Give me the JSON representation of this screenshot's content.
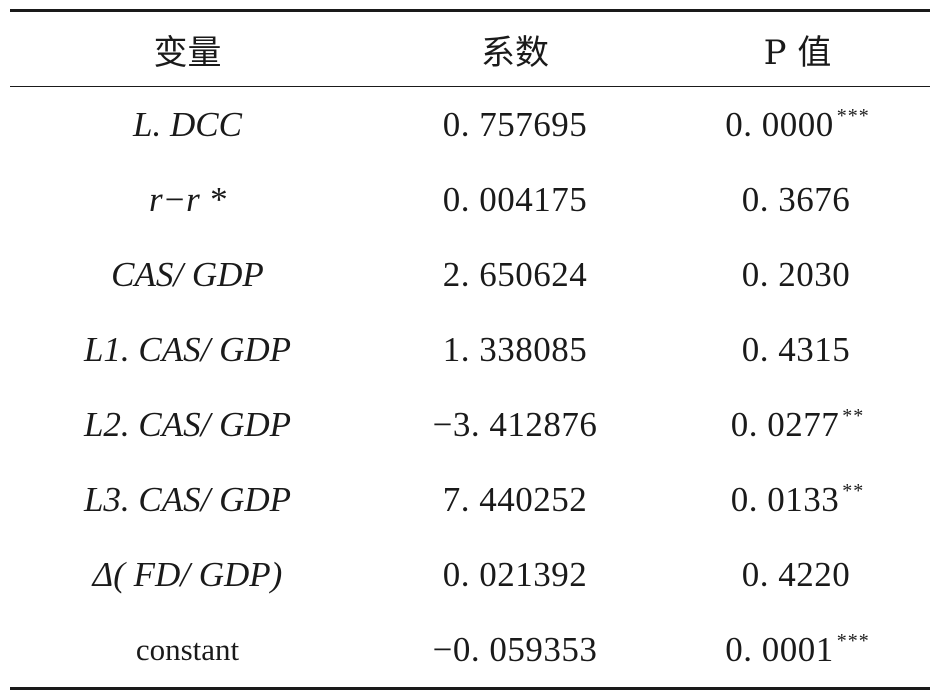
{
  "table": {
    "headers": {
      "variable": "变量",
      "coefficient": "系数",
      "pvalue": "P 值"
    },
    "rows": [
      {
        "variable": "L. DCC",
        "coefficient": "0. 757695",
        "pvalue": "0. 0000",
        "stars": "***"
      },
      {
        "variable": "r−r *",
        "coefficient": "0. 004175",
        "pvalue": "0. 3676",
        "stars": ""
      },
      {
        "variable": "CAS/ GDP",
        "coefficient": "2. 650624",
        "pvalue": "0. 2030",
        "stars": ""
      },
      {
        "variable": "L1. CAS/ GDP",
        "coefficient": "1. 338085",
        "pvalue": "0. 4315",
        "stars": ""
      },
      {
        "variable": "L2. CAS/ GDP",
        "coefficient": "−3. 412876",
        "pvalue": "0. 0277",
        "stars": "**"
      },
      {
        "variable": "L3. CAS/ GDP",
        "coefficient": "7. 440252",
        "pvalue": "0. 0133",
        "stars": "**"
      },
      {
        "variable": "Δ( FD/ GDP)",
        "coefficient": "0. 021392",
        "pvalue": "0. 4220",
        "stars": ""
      },
      {
        "variable": "constant",
        "coefficient": "−0. 059353",
        "pvalue": "0. 0001",
        "stars": "***"
      }
    ]
  }
}
